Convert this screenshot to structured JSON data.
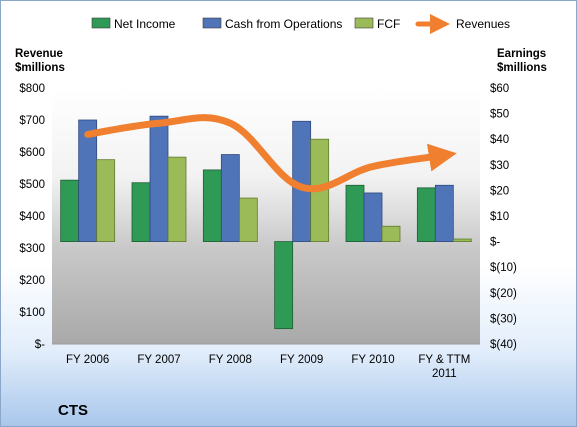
{
  "legend": {
    "items": [
      {
        "label": "Net Income",
        "color": "#2e9a55"
      },
      {
        "label": "Cash from Operations",
        "color": "#4f74b8"
      },
      {
        "label": "FCF",
        "color": "#9bbb59"
      },
      {
        "label": "Revenues",
        "color": "#f07f2f"
      }
    ]
  },
  "left_axis_title": [
    "Revenue",
    "$millions"
  ],
  "right_axis_title": [
    "Earnings",
    "$millions"
  ],
  "company": "CTS",
  "chart_data": {
    "type": "bar",
    "categories": [
      [
        "FY 2006"
      ],
      [
        "FY 2007"
      ],
      [
        "FY 2008"
      ],
      [
        "FY 2009"
      ],
      [
        "FY 2010"
      ],
      [
        "FY & TTM",
        "2011"
      ]
    ],
    "left_axis": {
      "ylim": [
        0,
        800
      ],
      "ticks": [
        "$-",
        "$100",
        "$200",
        "$300",
        "$400",
        "$500",
        "$600",
        "$700",
        "$800"
      ]
    },
    "right_axis": {
      "ylim": [
        -40,
        60
      ],
      "ticks": [
        "$(40)",
        "$(30)",
        "$(20)",
        "$(10)",
        "$-",
        "$10",
        "$20",
        "$30",
        "$40",
        "$50",
        "$60"
      ]
    },
    "series": [
      {
        "name": "Net Income",
        "axis": "right",
        "kind": "bar",
        "values": [
          24,
          23,
          28,
          -34,
          22,
          21
        ]
      },
      {
        "name": "Cash from Operations",
        "axis": "right",
        "kind": "bar",
        "values": [
          47.5,
          49,
          34,
          47,
          19,
          22
        ]
      },
      {
        "name": "FCF",
        "axis": "right",
        "kind": "bar",
        "values": [
          32,
          33,
          17,
          40,
          6,
          1
        ]
      },
      {
        "name": "Revenues",
        "axis": "left",
        "kind": "line",
        "values": [
          655,
          690,
          690,
          490,
          555,
          590
        ]
      }
    ],
    "grid": false,
    "legend_position": "top"
  }
}
